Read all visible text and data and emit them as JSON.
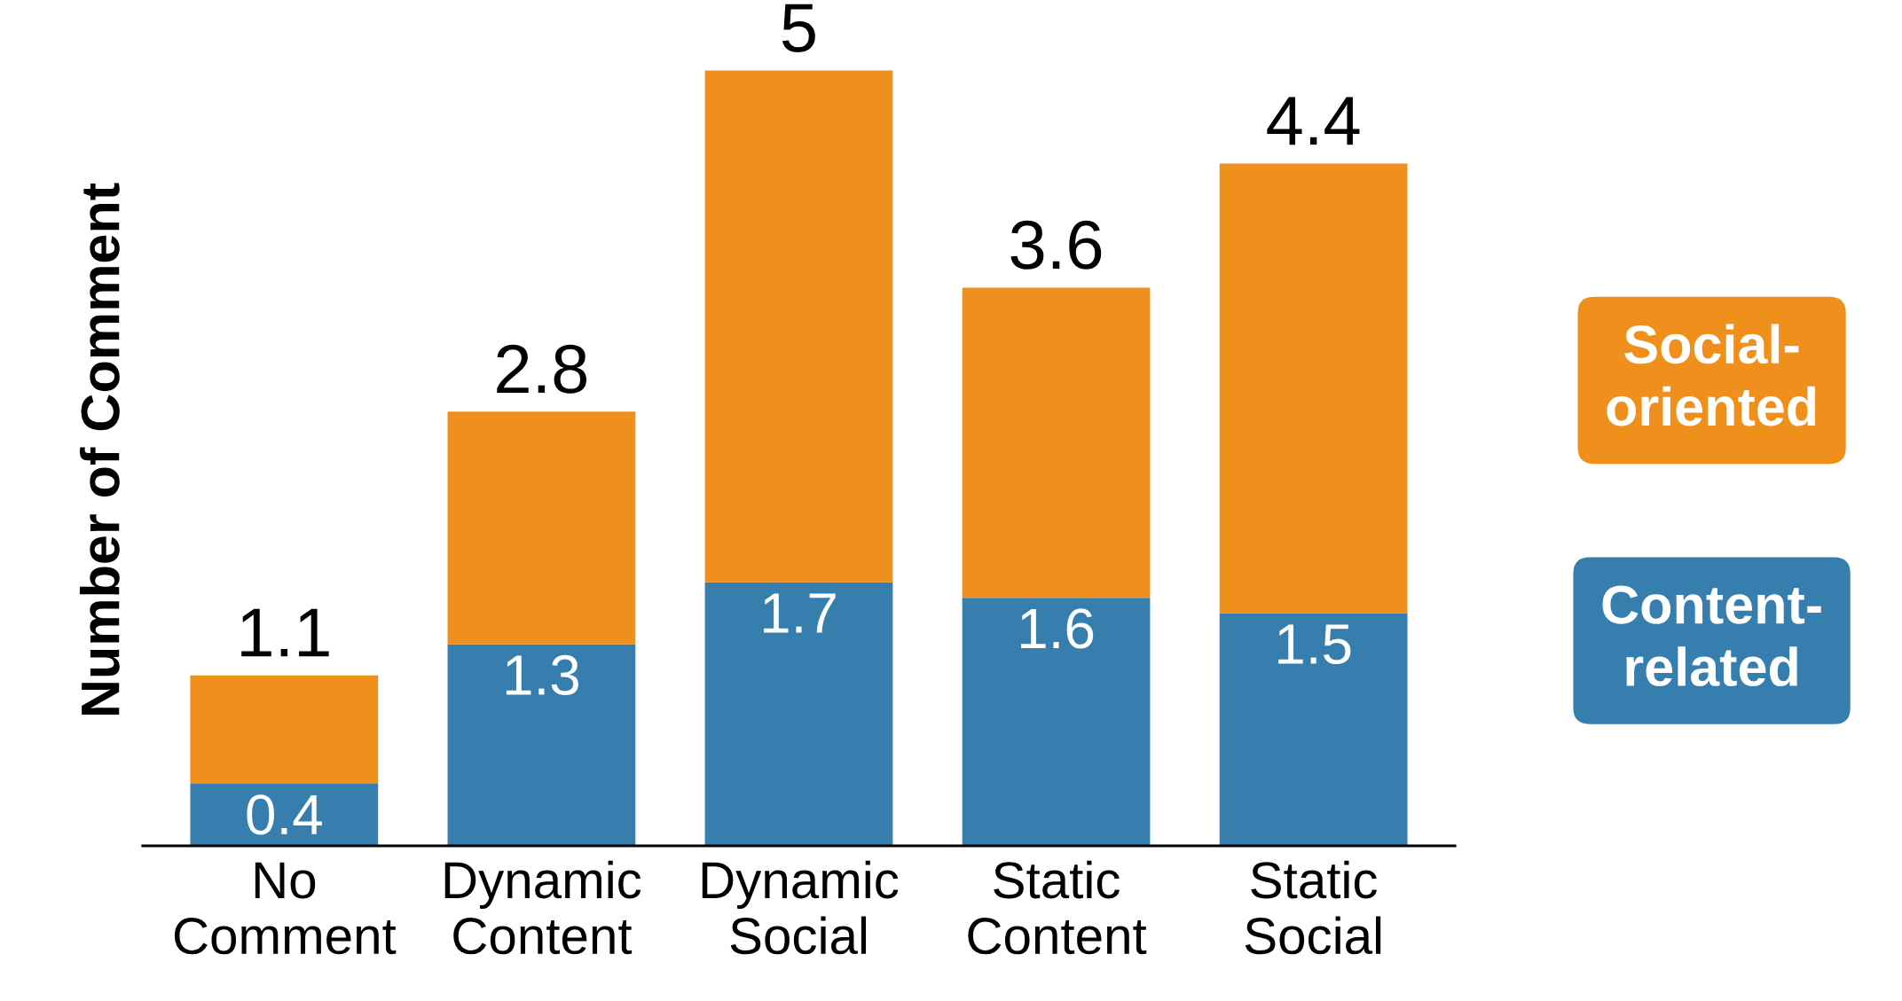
{
  "chart_data": {
    "type": "bar",
    "stacked": true,
    "ylabel": "Number of Comment",
    "categories": [
      "No\nComment",
      "Dynamic\nContent",
      "Dynamic\nSocial",
      "Static\nContent",
      "Static\nSocial"
    ],
    "series": [
      {
        "name": "Content-related",
        "color": "#367eae",
        "values": [
          0.4,
          1.3,
          1.7,
          1.6,
          1.5
        ],
        "value_labels": [
          "0.4",
          "1.3",
          "1.7",
          "1.6",
          "1.5"
        ]
      },
      {
        "name": "Social-oriented",
        "color": "#f0901c",
        "values": [
          0.7,
          1.5,
          3.3,
          2.0,
          2.9
        ]
      }
    ],
    "totals": [
      "1.1",
      "2.8",
      "5",
      "3.6",
      "4.4"
    ],
    "legend": "right",
    "tick_labels": "x",
    "grid": false
  }
}
